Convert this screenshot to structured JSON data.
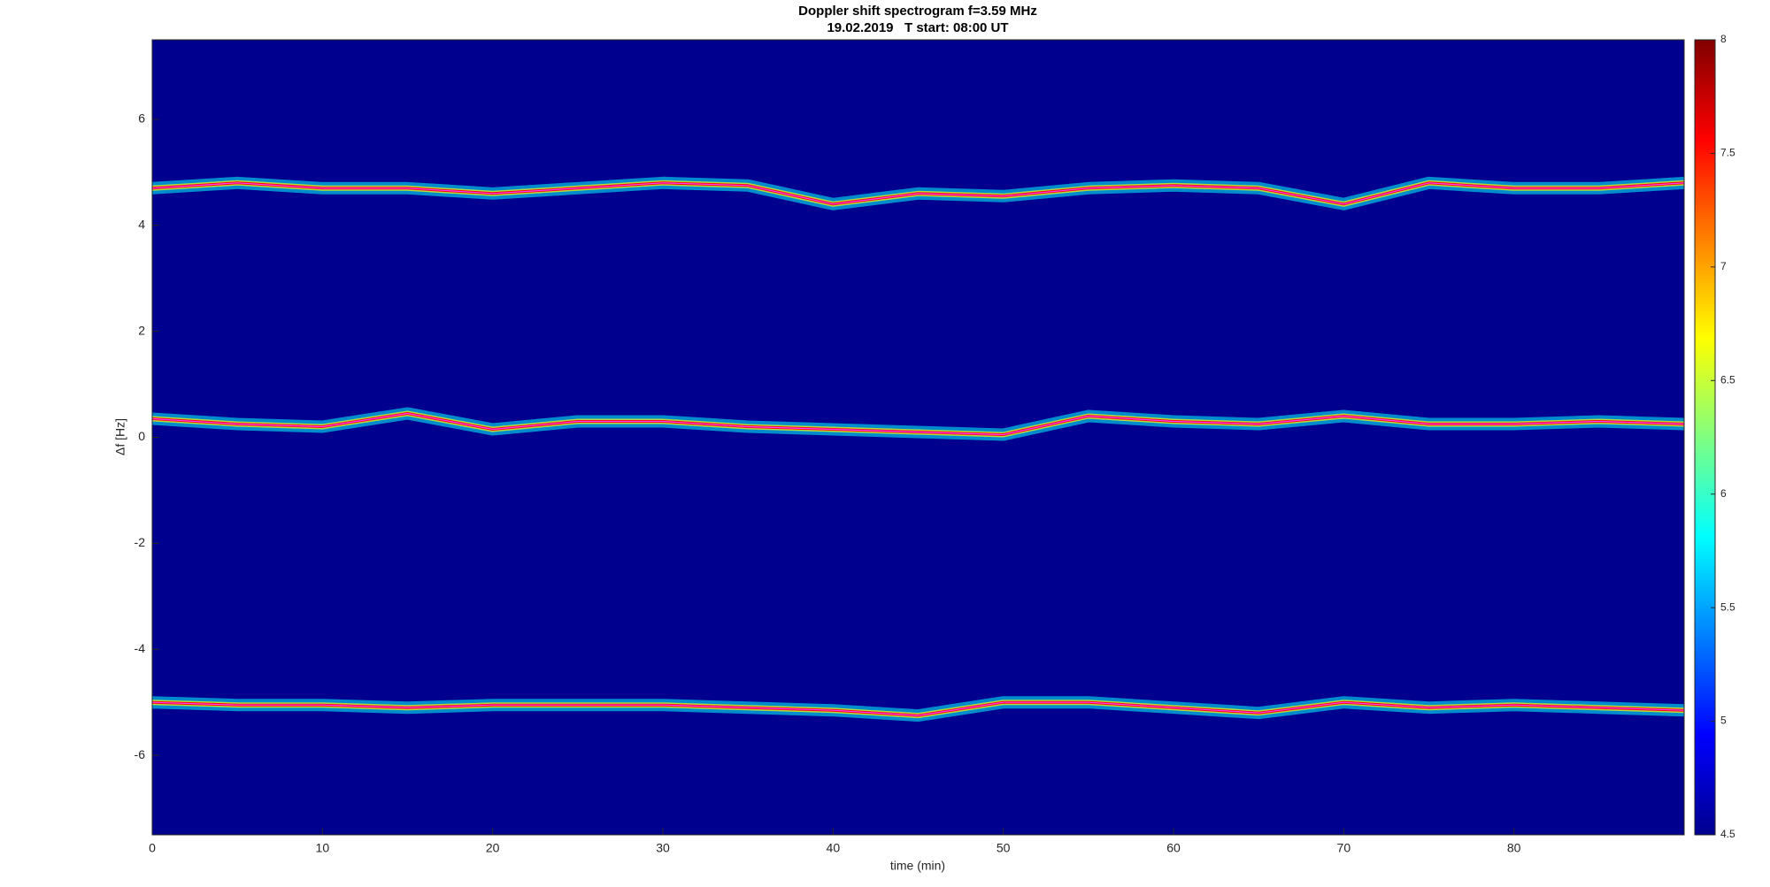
{
  "chart_data": {
    "type": "spectrogram",
    "title": "Doppler shift spectrogram f=3.59 MHz",
    "subtitle": "19.02.2019   T start: 08:00 UT",
    "x_label": "time (min)",
    "y_label": "Δf [Hz]",
    "background_color": "#00008f",
    "xlim": [
      0,
      90
    ],
    "ylim": [
      -7.5,
      7.5
    ],
    "xticks": [
      0,
      10,
      20,
      30,
      40,
      50,
      60,
      70,
      80
    ],
    "yticks": [
      -6,
      -4,
      -2,
      0,
      2,
      4,
      6
    ],
    "x": [
      0,
      5,
      10,
      15,
      20,
      25,
      30,
      35,
      40,
      45,
      50,
      55,
      60,
      65,
      70,
      75,
      80,
      85,
      90
    ],
    "traces": [
      {
        "values": [
          4.7,
          4.8,
          4.7,
          4.7,
          4.6,
          4.7,
          4.8,
          4.75,
          4.4,
          4.6,
          4.55,
          4.7,
          4.75,
          4.7,
          4.4,
          4.8,
          4.7,
          4.7,
          4.8
        ]
      },
      {
        "values": [
          0.35,
          0.25,
          0.2,
          0.45,
          0.15,
          0.3,
          0.3,
          0.2,
          0.15,
          0.1,
          0.05,
          0.4,
          0.3,
          0.25,
          0.4,
          0.25,
          0.25,
          0.3,
          0.25
        ]
      },
      {
        "values": [
          -5.0,
          -5.05,
          -5.05,
          -5.1,
          -5.05,
          -5.05,
          -5.05,
          -5.1,
          -5.15,
          -5.25,
          -5.0,
          -5.0,
          -5.1,
          -5.2,
          -5.0,
          -5.1,
          -5.05,
          -5.1,
          -5.15
        ]
      }
    ],
    "clim": [
      4.5,
      8
    ],
    "cticks": [
      4.5,
      5,
      5.5,
      6,
      6.5,
      7,
      7.5,
      8
    ],
    "colormap": [
      "#00008f",
      "#0000ff",
      "#0080ff",
      "#00ffff",
      "#80ff80",
      "#ffff00",
      "#ff8000",
      "#ff0000",
      "#800000"
    ]
  }
}
